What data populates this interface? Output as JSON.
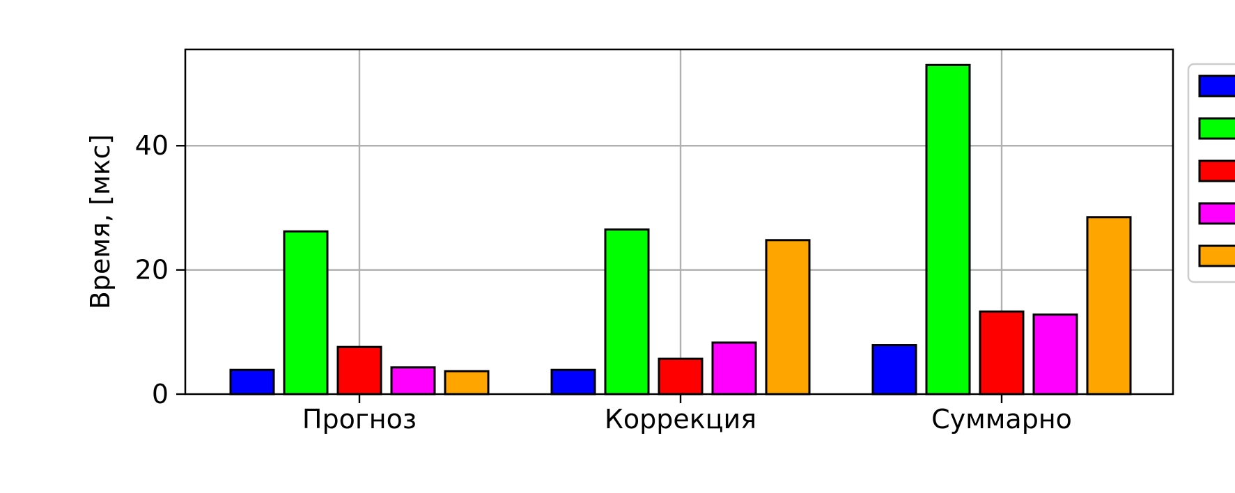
{
  "chart_data": {
    "type": "bar",
    "title": "",
    "xlabel": "",
    "ylabel": "Время, [мкс]",
    "categories": [
      "Прогноз",
      "Коррекция",
      "Суммарно"
    ],
    "ylim": [
      0,
      55.5
    ],
    "yticks": [
      0,
      20,
      40
    ],
    "grid": true,
    "legend_placement": "right",
    "series": [
      {
        "color": "#0000ff",
        "values": [
          3.9,
          3.9,
          7.9
        ]
      },
      {
        "color": "#00ff00",
        "values": [
          26.2,
          26.5,
          53.0
        ]
      },
      {
        "color": "#ff0000",
        "values": [
          7.6,
          5.7,
          13.3
        ]
      },
      {
        "color": "#ff00ff",
        "values": [
          4.3,
          8.3,
          12.8
        ]
      },
      {
        "color": "#ffa500",
        "values": [
          3.7,
          24.8,
          28.5
        ]
      }
    ]
  }
}
